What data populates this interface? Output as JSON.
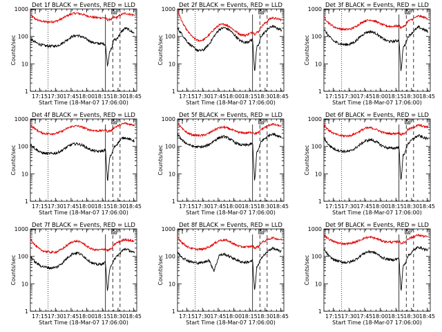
{
  "figure": {
    "panels": [
      {
        "title": "Det 1f BLACK = Events, RED = LLD",
        "ylabel": "Counts/sec",
        "xlabel": "Start Time (18-Mar-07 17:06:00)",
        "marker_label": "S"
      },
      {
        "title": "Det 2f BLACK = Events, RED = LLD",
        "ylabel": "Counts/sec",
        "xlabel": "Start Time (18-Mar-07 17:06:00)",
        "marker_label": "S"
      },
      {
        "title": "Det 3f BLACK = Events, RED = LLD",
        "ylabel": "Counts/sec",
        "xlabel": "Start Time (18-Mar-07 17:06:00)",
        "marker_label": "S"
      },
      {
        "title": "Det 4f BLACK = Events, RED = LLD",
        "ylabel": "Counts/sec",
        "xlabel": "Start Time (18-Mar-07 17:06:00)",
        "marker_label": "S"
      },
      {
        "title": "Det 5f BLACK = Events, RED = LLD",
        "ylabel": "Counts/sec",
        "xlabel": "Start Time (18-Mar-07 17:06:00)",
        "marker_label": "S"
      },
      {
        "title": "Det 6f BLACK = Events, RED = LLD",
        "ylabel": "Counts/sec",
        "xlabel": "Start Time (18-Mar-07 17:06:00)",
        "marker_label": "S"
      },
      {
        "title": "Det 7f BLACK = Events, RED = LLD",
        "ylabel": "Counts/sec",
        "xlabel": "Start Time (18-Mar-07 17:06:00)",
        "marker_label": "S"
      },
      {
        "title": "Det 8f BLACK = Events, RED = LLD",
        "ylabel": "Counts/sec",
        "xlabel": "Start Time (18-Mar-07 17:06:00)",
        "marker_label": "S"
      },
      {
        "title": "Det 9f BLACK = Events, RED = LLD",
        "ylabel": "Counts/sec",
        "xlabel": "Start Time (18-Mar-07 17:06:00)",
        "marker_label": "S"
      }
    ]
  },
  "chart_data": {
    "type": "line",
    "yscale": "log",
    "ylim": [
      1,
      1000
    ],
    "y_ticks": [
      "1",
      "10",
      "100",
      "1000"
    ],
    "xlim": [
      "17:06",
      "18:48"
    ],
    "x_ticks": [
      "17:15",
      "17:30",
      "17:45",
      "18:00",
      "18:15",
      "18:30",
      "18:45"
    ],
    "x_ticks_minutes": [
      9,
      24,
      39,
      54,
      69,
      84,
      99
    ],
    "series_colors": {
      "events": "#000000",
      "lld": "#e00000"
    },
    "markers_minutes": {
      "dotted": 17,
      "solid": 72,
      "dashed": [
        79,
        86
      ],
      "box": 78
    },
    "curve_x_minutes": [
      0,
      5,
      10,
      15,
      20,
      25,
      30,
      35,
      40,
      45,
      50,
      55,
      60,
      65,
      70,
      72,
      74,
      76,
      78,
      80,
      82,
      85,
      88,
      91,
      94,
      97,
      100
    ],
    "panels": [
      {
        "events": [
          80,
          60,
          50,
          45,
          45,
          45,
          55,
          75,
          100,
          110,
          95,
          75,
          60,
          55,
          55,
          50,
          8,
          30,
          35,
          80,
          75,
          110,
          160,
          200,
          180,
          150,
          130
        ],
        "lld": [
          600,
          430,
          360,
          340,
          340,
          360,
          440,
          560,
          680,
          700,
          640,
          560,
          500,
          480,
          480,
          470,
          400,
          420,
          430,
          500,
          480,
          560,
          650,
          700,
          660,
          620,
          600
        ]
      },
      {
        "events": [
          200,
          110,
          60,
          40,
          30,
          32,
          50,
          100,
          180,
          210,
          170,
          110,
          70,
          60,
          70,
          80,
          5,
          40,
          50,
          100,
          120,
          160,
          200,
          240,
          210,
          190,
          170
        ],
        "lld": [
          900,
          300,
          150,
          90,
          70,
          75,
          110,
          180,
          260,
          280,
          230,
          160,
          120,
          110,
          130,
          150,
          120,
          140,
          150,
          220,
          260,
          330,
          420,
          480,
          450,
          430,
          410
        ]
      },
      {
        "events": [
          180,
          100,
          65,
          55,
          50,
          52,
          65,
          100,
          140,
          150,
          130,
          90,
          70,
          65,
          70,
          75,
          5,
          40,
          50,
          90,
          110,
          140,
          180,
          220,
          190,
          170,
          150
        ],
        "lld": [
          500,
          300,
          220,
          190,
          180,
          185,
          220,
          300,
          380,
          400,
          350,
          280,
          240,
          230,
          240,
          250,
          210,
          230,
          240,
          350,
          380,
          420,
          500,
          560,
          520,
          480,
          450
        ]
      },
      {
        "events": [
          120,
          80,
          60,
          55,
          55,
          57,
          70,
          95,
          120,
          125,
          110,
          85,
          70,
          65,
          70,
          75,
          5,
          40,
          50,
          90,
          110,
          150,
          200,
          210,
          190,
          170,
          160
        ],
        "lld": [
          600,
          420,
          320,
          290,
          290,
          300,
          350,
          450,
          540,
          560,
          500,
          420,
          380,
          370,
          380,
          400,
          350,
          370,
          380,
          480,
          520,
          580,
          650,
          700,
          650,
          620,
          600
        ]
      },
      {
        "events": [
          280,
          160,
          120,
          100,
          95,
          97,
          115,
          160,
          210,
          230,
          190,
          140,
          115,
          110,
          120,
          130,
          5,
          60,
          80,
          150,
          170,
          210,
          260,
          290,
          260,
          240,
          220
        ],
        "lld": [
          700,
          420,
          300,
          260,
          250,
          255,
          300,
          390,
          480,
          500,
          440,
          360,
          320,
          310,
          320,
          340,
          290,
          310,
          320,
          420,
          450,
          520,
          600,
          650,
          600,
          570,
          550
        ]
      },
      {
        "events": [
          200,
          110,
          80,
          70,
          65,
          67,
          85,
          120,
          160,
          175,
          150,
          110,
          90,
          85,
          90,
          95,
          5,
          50,
          60,
          120,
          140,
          180,
          220,
          250,
          220,
          200,
          190
        ],
        "lld": [
          600,
          380,
          290,
          250,
          240,
          245,
          290,
          370,
          460,
          480,
          420,
          340,
          300,
          290,
          300,
          320,
          270,
          290,
          300,
          400,
          430,
          480,
          540,
          600,
          560,
          520,
          500
        ]
      },
      {
        "events": [
          100,
          60,
          45,
          40,
          38,
          40,
          55,
          85,
          125,
          135,
          110,
          75,
          55,
          50,
          55,
          60,
          5,
          35,
          45,
          80,
          90,
          120,
          160,
          190,
          170,
          150,
          130
        ],
        "lld": [
          450,
          240,
          170,
          150,
          140,
          145,
          180,
          250,
          340,
          360,
          310,
          220,
          180,
          170,
          180,
          190,
          160,
          180,
          190,
          260,
          300,
          340,
          380,
          420,
          390,
          370,
          350
        ]
      },
      {
        "events": [
          140,
          90,
          70,
          60,
          58,
          60,
          75,
          30,
          110,
          120,
          100,
          80,
          65,
          60,
          65,
          70,
          5,
          40,
          50,
          90,
          100,
          130,
          170,
          200,
          180,
          160,
          150
        ],
        "lld": [
          500,
          300,
          220,
          190,
          180,
          185,
          220,
          290,
          380,
          400,
          350,
          270,
          230,
          220,
          230,
          240,
          200,
          220,
          230,
          310,
          340,
          380,
          430,
          480,
          450,
          420,
          400
        ]
      },
      {
        "events": [
          180,
          100,
          75,
          65,
          60,
          62,
          75,
          105,
          140,
          150,
          130,
          95,
          80,
          75,
          80,
          85,
          5,
          45,
          55,
          100,
          115,
          150,
          190,
          220,
          200,
          180,
          170
        ],
        "lld": [
          620,
          420,
          340,
          300,
          290,
          295,
          330,
          400,
          480,
          500,
          450,
          380,
          340,
          330,
          340,
          350,
          300,
          320,
          330,
          430,
          460,
          500,
          560,
          600,
          560,
          530,
          510
        ]
      }
    ]
  }
}
